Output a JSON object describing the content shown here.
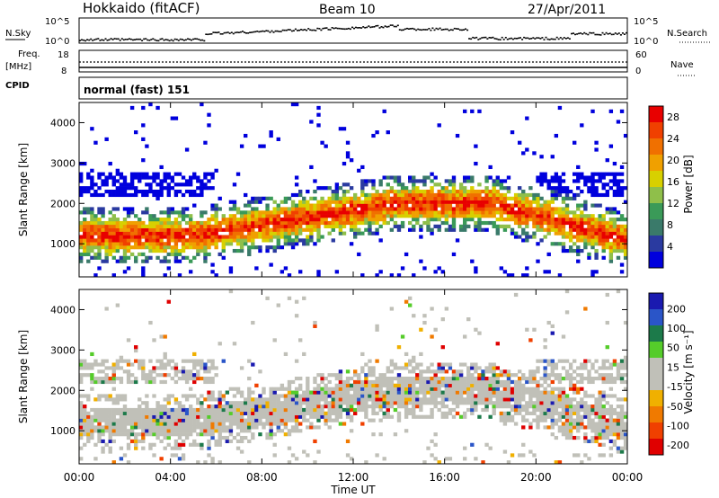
{
  "header": {
    "station": "Hokkaido (fitACF)",
    "beam": "Beam 10",
    "date": "27/Apr/2011"
  },
  "top_panels": {
    "nsky_label": "N.Sky",
    "nsky_ticks": [
      "10^5",
      "10^0"
    ],
    "nsearch_label": "N.Search",
    "nsearch_ticks": [
      "10^5",
      "10^0"
    ],
    "freq_label": "Freq.",
    "freq_unit": "[MHz]",
    "freq_ticks": [
      "18",
      "8"
    ],
    "nave_label": "Nave",
    "nave_ticks": [
      "60",
      "0"
    ],
    "cpid_label": "CPID",
    "cpid_value": "normal (fast) 151"
  },
  "colors": {
    "power": [
      "#0000dd",
      "#2a3aa0",
      "#3a7a6a",
      "#3a9a58",
      "#8fbf4a",
      "#d8d000",
      "#f0a000",
      "#f07000",
      "#f04000",
      "#e80000"
    ],
    "velocity": [
      "#1a1ab0",
      "#2a55c8",
      "#1c7a4a",
      "#55cc2a",
      "#c0c0b8",
      "#c0c0b8",
      "#f0b000",
      "#f07a00",
      "#f04000",
      "#e00000"
    ]
  },
  "chart_data": [
    {
      "type": "heatmap",
      "title": "",
      "xlabel": "Time UT",
      "ylabel": "Slant Range [km]",
      "x_ticks": [
        "00:00",
        "04:00",
        "08:00",
        "12:00",
        "16:00",
        "20:00",
        "00:00"
      ],
      "y_ticks": [
        "1000",
        "2000",
        "3000",
        "4000"
      ],
      "xlim": [
        0,
        24
      ],
      "ylim": [
        180,
        4500
      ],
      "colorbar_label": "Power [dB]",
      "colorbar_ticks": [
        "4",
        "8",
        "12",
        "16",
        "20",
        "24",
        "28"
      ],
      "colorbar_range": [
        0,
        30
      ]
    },
    {
      "type": "heatmap",
      "title": "",
      "xlabel": "Time UT",
      "ylabel": "Slant Range [km]",
      "x_ticks": [
        "00:00",
        "04:00",
        "08:00",
        "12:00",
        "16:00",
        "20:00",
        "00:00"
      ],
      "y_ticks": [
        "1000",
        "2000",
        "3000",
        "4000"
      ],
      "xlim": [
        0,
        24
      ],
      "ylim": [
        180,
        4500
      ],
      "colorbar_label": "Velocity [m s⁻¹]",
      "colorbar_ticks": [
        "200",
        "100",
        "50",
        "15",
        "-15",
        "-50",
        "-100",
        "-200"
      ],
      "colorbar_range": [
        -250,
        250
      ]
    }
  ]
}
